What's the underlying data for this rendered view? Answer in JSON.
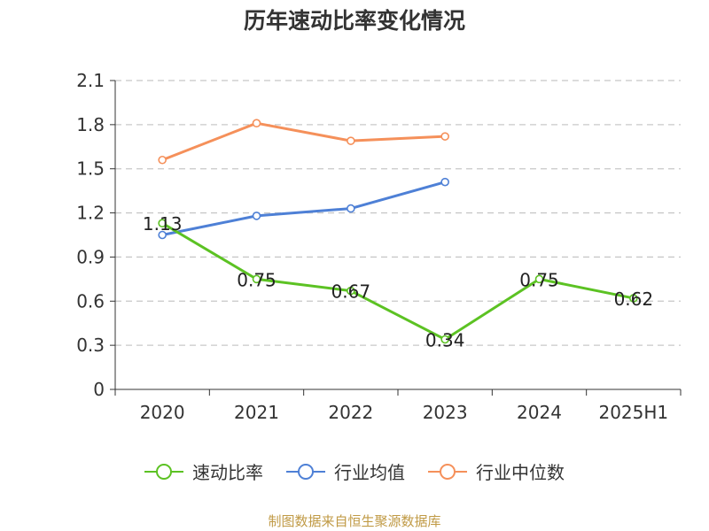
{
  "chart_data": {
    "type": "line",
    "title": "历年速动比率变化情况",
    "categories": [
      "2020",
      "2021",
      "2022",
      "2023",
      "2024",
      "2025H1"
    ],
    "yticks": [
      "0",
      "0.3",
      "0.6",
      "0.9",
      "1.2",
      "1.5",
      "1.8",
      "2.1"
    ],
    "ylim": [
      0,
      2.1
    ],
    "grid": true,
    "legend_position": "bottom",
    "series": [
      {
        "name": "速动比率",
        "color": "#5cc223",
        "values": [
          1.13,
          0.75,
          0.67,
          0.34,
          0.75,
          0.62
        ],
        "labels": [
          "1.13",
          "0.75",
          "0.67",
          "0.34",
          "0.75",
          "0.62"
        ]
      },
      {
        "name": "行业均值",
        "color": "#4e80d6",
        "values": [
          1.05,
          1.18,
          1.23,
          1.41,
          null,
          null
        ]
      },
      {
        "name": "行业中位数",
        "color": "#f5905a",
        "values": [
          1.56,
          1.81,
          1.69,
          1.72,
          null,
          null
        ]
      }
    ]
  },
  "source": "制图数据来自恒生聚源数据库"
}
